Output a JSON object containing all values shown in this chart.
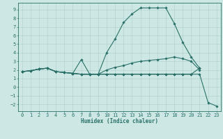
{
  "xlabel": "Humidex (Indice chaleur)",
  "bg_color": "#cde8e4",
  "line_color": "#2a7068",
  "grid_color": "#aacfcb",
  "xlim": [
    -0.5,
    23.5
  ],
  "ylim": [
    -2.8,
    9.8
  ],
  "xticks": [
    0,
    1,
    2,
    3,
    4,
    5,
    6,
    7,
    8,
    9,
    10,
    11,
    12,
    13,
    14,
    15,
    16,
    17,
    18,
    19,
    20,
    21,
    22,
    23
  ],
  "yticks": [
    -2,
    -1,
    0,
    1,
    2,
    3,
    4,
    5,
    6,
    7,
    8,
    9
  ],
  "line1_x": [
    0,
    1,
    2,
    3,
    4,
    5,
    6,
    7,
    8,
    9,
    10,
    11,
    12,
    13,
    14,
    15,
    16,
    17,
    18,
    19,
    20,
    21
  ],
  "line1_y": [
    1.8,
    1.9,
    2.1,
    2.2,
    1.8,
    1.7,
    1.6,
    1.5,
    1.5,
    1.5,
    4.0,
    5.6,
    7.5,
    8.5,
    9.2,
    9.2,
    9.2,
    9.2,
    7.4,
    5.2,
    3.5,
    2.2
  ],
  "line2_x": [
    0,
    1,
    2,
    3,
    4,
    5,
    6,
    7,
    8,
    9,
    10,
    11,
    12,
    13,
    14,
    15,
    16,
    17,
    18,
    19,
    20,
    21
  ],
  "line2_y": [
    1.8,
    1.9,
    2.1,
    2.2,
    1.8,
    1.7,
    1.6,
    1.5,
    1.5,
    1.5,
    2.0,
    2.3,
    2.5,
    2.8,
    3.0,
    3.1,
    3.2,
    3.3,
    3.5,
    3.3,
    3.0,
    2.0
  ],
  "line3_x": [
    0,
    1,
    2,
    3,
    4,
    5,
    6,
    7,
    8,
    9,
    10,
    11,
    12,
    13,
    14,
    15,
    16,
    17,
    18,
    19,
    20,
    21
  ],
  "line3_y": [
    1.8,
    1.9,
    2.1,
    2.2,
    1.8,
    1.7,
    1.6,
    3.2,
    1.5,
    1.5,
    1.5,
    1.5,
    1.5,
    1.5,
    1.5,
    1.5,
    1.5,
    1.5,
    1.5,
    1.5,
    1.5,
    2.2
  ],
  "line4_x": [
    0,
    1,
    2,
    3,
    4,
    5,
    6,
    7,
    8,
    9,
    10,
    11,
    12,
    13,
    14,
    15,
    16,
    17,
    18,
    19,
    20,
    21,
    22,
    23
  ],
  "line4_y": [
    1.8,
    1.9,
    2.1,
    2.2,
    1.8,
    1.7,
    1.6,
    1.5,
    1.5,
    1.5,
    1.5,
    1.5,
    1.5,
    1.5,
    1.5,
    1.5,
    1.5,
    1.5,
    1.5,
    1.5,
    1.5,
    1.5,
    -1.8,
    -2.2
  ],
  "tick_fontsize": 5.0,
  "xlabel_fontsize": 5.5,
  "linewidth": 0.8,
  "markersize": 1.8
}
